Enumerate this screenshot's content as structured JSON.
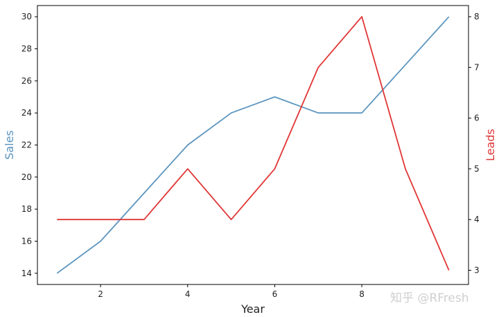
{
  "chart_data": {
    "type": "line",
    "xlabel": "Year",
    "ylabel_left": "Sales",
    "ylabel_right": "Leads",
    "x": [
      1,
      2,
      3,
      4,
      5,
      6,
      7,
      8,
      9,
      10
    ],
    "xlim": [
      0.55,
      10.45
    ],
    "xticks": [
      2,
      4,
      6,
      8
    ],
    "x_tick_labels": [
      "2",
      "4",
      "6",
      "8"
    ],
    "ylim_left": [
      13.3,
      30.7
    ],
    "yticks_left": [
      14,
      16,
      18,
      20,
      22,
      24,
      26,
      28,
      30
    ],
    "ylim_right": [
      2.72,
      8.22
    ],
    "yticks_right": [
      3,
      4,
      5,
      6,
      7,
      8
    ],
    "grid": false,
    "series": [
      {
        "axis": "left",
        "color": "#5b95bf",
        "values": [
          14,
          16,
          19,
          22,
          24,
          25,
          24,
          24,
          27,
          30
        ]
      },
      {
        "axis": "right",
        "color": "#e03535",
        "values": [
          4,
          4,
          4,
          5,
          4,
          5,
          7,
          8,
          5,
          3
        ]
      }
    ],
    "colors": {
      "left_axis_label": "#5b95bf",
      "right_axis_label": "#e03535"
    }
  },
  "watermark": "知乎 @RFresh"
}
